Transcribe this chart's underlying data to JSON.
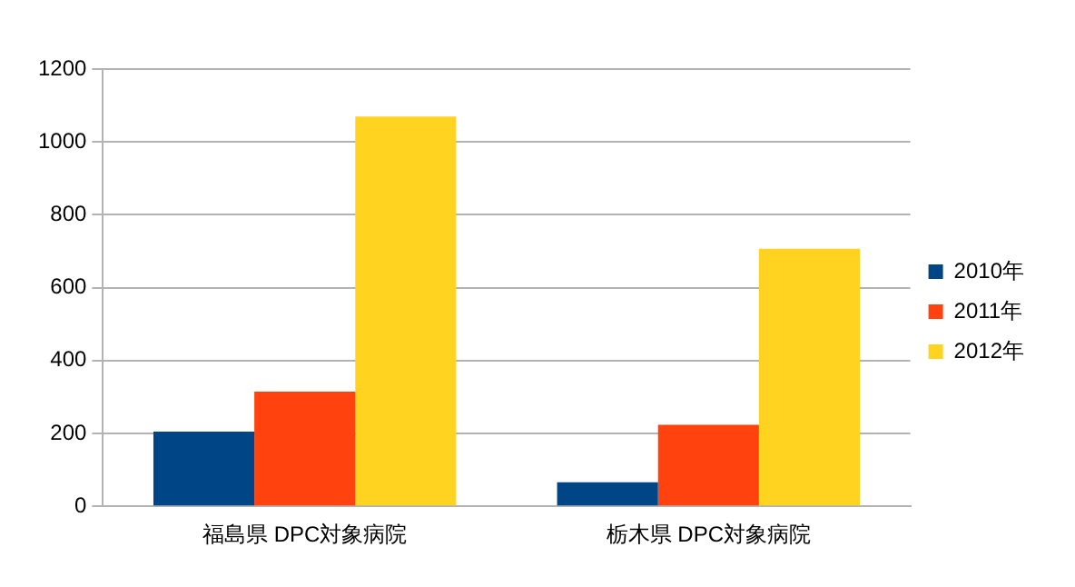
{
  "chart_data": {
    "type": "bar",
    "categories": [
      "福島県 DPC対象病院",
      "栃木県 DPC対象病院"
    ],
    "series": [
      {
        "name": "2010年",
        "color": "#004586",
        "values": [
          205,
          66
        ]
      },
      {
        "name": "2011年",
        "color": "#ff420e",
        "values": [
          315,
          224
        ]
      },
      {
        "name": "2012年",
        "color": "#ffd320",
        "values": [
          1070,
          707
        ]
      }
    ],
    "ylim": [
      0,
      1200
    ],
    "yticks": [
      0,
      200,
      400,
      600,
      800,
      1000,
      1200
    ],
    "grid": "y",
    "legend": "right"
  }
}
